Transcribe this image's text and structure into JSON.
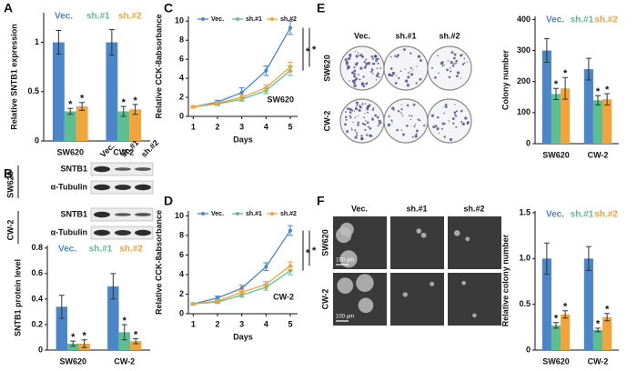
{
  "figure": {
    "panels": [
      "A",
      "B",
      "C",
      "D",
      "E",
      "F"
    ],
    "blot": {
      "columns": [
        "Vec.",
        "sh.#1",
        "sh.#2"
      ],
      "cell_lines": [
        "SW620",
        "CW-2"
      ],
      "proteins": [
        "SNTB1",
        "α-Tubulin"
      ]
    },
    "colony": {
      "columns": [
        "Vec.",
        "sh.#1",
        "sh.#2"
      ],
      "rows": [
        "SW620",
        "CW-2"
      ]
    },
    "sphere": {
      "columns": [
        "Vec.",
        "sh.#1",
        "sh.#2"
      ],
      "rows": [
        "SW620",
        "CW-2"
      ],
      "scale_bar": "100 μm"
    }
  },
  "chart_data": [
    {
      "type": "bar",
      "ylabel": "Relative SNTB1 expression",
      "categories": [
        "SW620",
        "CW-2"
      ],
      "ylim": [
        0,
        1.3
      ],
      "yticks": [
        0,
        0.5,
        1
      ],
      "legend": "top",
      "series": [
        {
          "name": "Vec.",
          "color": "#4a86c8",
          "values": [
            1.0,
            1.0
          ],
          "errors": [
            0.12,
            0.13
          ]
        },
        {
          "name": "sh.#1",
          "color": "#5dbf8f",
          "values": [
            0.3,
            0.3
          ],
          "errors": [
            0.03,
            0.05
          ]
        },
        {
          "name": "sh.#2",
          "color": "#f2a33a",
          "values": [
            0.35,
            0.32
          ],
          "errors": [
            0.04,
            0.05
          ]
        }
      ],
      "annotations": [
        {
          "text": "*",
          "series": 1,
          "category": 0
        },
        {
          "text": "*",
          "series": 2,
          "category": 0
        },
        {
          "text": "*",
          "series": 1,
          "category": 1
        },
        {
          "text": "*",
          "series": 2,
          "category": 1
        }
      ]
    },
    {
      "type": "bar",
      "ylabel": "SNTB1 protein level",
      "categories": [
        "SW620",
        "CW-2"
      ],
      "ylim": [
        0,
        0.82
      ],
      "yticks": [
        0,
        0.2,
        0.4,
        0.6,
        0.8
      ],
      "legend": "top",
      "series": [
        {
          "name": "Vec.",
          "color": "#4a86c8",
          "values": [
            0.34,
            0.5
          ],
          "errors": [
            0.09,
            0.1
          ]
        },
        {
          "name": "sh.#1",
          "color": "#5dbf8f",
          "values": [
            0.05,
            0.14
          ],
          "errors": [
            0.02,
            0.06
          ]
        },
        {
          "name": "sh.#2",
          "color": "#f2a33a",
          "values": [
            0.05,
            0.07
          ],
          "errors": [
            0.03,
            0.02
          ]
        }
      ],
      "annotations": [
        {
          "text": "*",
          "series": 1,
          "category": 0
        },
        {
          "text": "*",
          "series": 2,
          "category": 0
        },
        {
          "text": "*",
          "series": 1,
          "category": 1
        },
        {
          "text": "*",
          "series": 2,
          "category": 1
        }
      ]
    },
    {
      "type": "line",
      "ylabel": "Relative CCK-8absorbance",
      "xlabel": "Days",
      "label": "SW620",
      "x": [
        1,
        2,
        3,
        4,
        5
      ],
      "xlim": [
        0.8,
        5.3
      ],
      "xticks": [
        1,
        2,
        3,
        4,
        5
      ],
      "ylim": [
        0,
        10.5
      ],
      "yticks": [
        0,
        2,
        4,
        6,
        8,
        10
      ],
      "legend": "top",
      "series": [
        {
          "name": "Vec.",
          "color": "#4a86c8",
          "values": [
            1,
            1.5,
            2.5,
            4.8,
            9.3
          ],
          "errors": [
            0.1,
            0.2,
            0.5,
            0.5,
            0.7
          ]
        },
        {
          "name": "sh.#1",
          "color": "#5dbf8f",
          "values": [
            1,
            1.3,
            1.8,
            2.7,
            4.8
          ],
          "errors": [
            0.1,
            0.15,
            0.2,
            0.3,
            0.5
          ]
        },
        {
          "name": "sh.#2",
          "color": "#f2a33a",
          "values": [
            1,
            1.4,
            2.0,
            3.0,
            5.2
          ],
          "errors": [
            0.1,
            0.15,
            0.25,
            0.3,
            0.5
          ]
        }
      ],
      "annotations": [
        {
          "text": "*",
          "series": 1
        },
        {
          "text": "*",
          "series": 2
        }
      ]
    },
    {
      "type": "line",
      "ylabel": "Relative CCK-8absorbance",
      "xlabel": "Days",
      "label": "CW-2",
      "x": [
        1,
        2,
        3,
        4,
        5
      ],
      "xlim": [
        0.8,
        5.3
      ],
      "xticks": [
        1,
        2,
        3,
        4,
        5
      ],
      "ylim": [
        0,
        10.5
      ],
      "yticks": [
        0,
        2,
        4,
        6,
        8,
        10
      ],
      "legend": "top",
      "series": [
        {
          "name": "Vec.",
          "color": "#4a86c8",
          "values": [
            1,
            1.6,
            2.6,
            4.8,
            8.5
          ],
          "errors": [
            0.1,
            0.2,
            0.3,
            0.4,
            0.5
          ]
        },
        {
          "name": "sh.#1",
          "color": "#5dbf8f",
          "values": [
            1,
            1.2,
            1.9,
            2.7,
            4.4
          ],
          "errors": [
            0.1,
            0.15,
            0.2,
            0.3,
            0.4
          ]
        },
        {
          "name": "sh.#2",
          "color": "#f2a33a",
          "values": [
            1,
            1.3,
            2.2,
            3.0,
            4.9
          ],
          "errors": [
            0.1,
            0.15,
            0.25,
            0.3,
            0.4
          ]
        }
      ],
      "annotations": [
        {
          "text": "*",
          "series": 1
        },
        {
          "text": "*",
          "series": 2
        }
      ]
    },
    {
      "type": "bar",
      "ylabel": "Colony number",
      "categories": [
        "SW620",
        "CW-2"
      ],
      "ylim": [
        0,
        410
      ],
      "yticks": [
        0,
        100,
        200,
        300,
        400
      ],
      "legend": "top",
      "series": [
        {
          "name": "Vec.",
          "color": "#4a86c8",
          "values": [
            300,
            240
          ],
          "errors": [
            38,
            35
          ]
        },
        {
          "name": "sh.#1",
          "color": "#5dbf8f",
          "values": [
            160,
            140
          ],
          "errors": [
            18,
            15
          ]
        },
        {
          "name": "sh.#2",
          "color": "#f2a33a",
          "values": [
            178,
            143
          ],
          "errors": [
            35,
            18
          ]
        }
      ],
      "annotations": [
        {
          "text": "*",
          "series": 1,
          "category": 0
        },
        {
          "text": "*",
          "series": 2,
          "category": 0
        },
        {
          "text": "*",
          "series": 1,
          "category": 1
        },
        {
          "text": "*",
          "series": 2,
          "category": 1
        }
      ]
    },
    {
      "type": "bar",
      "ylabel": "Relative colony number",
      "categories": [
        "SW620",
        "CW-2"
      ],
      "ylim": [
        0,
        1.52
      ],
      "yticks": [
        0,
        0.5,
        {
          "value": 1,
          "label": "1.0"
        },
        1.5
      ],
      "legend": "top",
      "series": [
        {
          "name": "Vec.",
          "color": "#4a86c8",
          "values": [
            1.0,
            1.0
          ],
          "errors": [
            0.17,
            0.13
          ]
        },
        {
          "name": "sh.#1",
          "color": "#5dbf8f",
          "values": [
            0.27,
            0.22
          ],
          "errors": [
            0.03,
            0.02
          ]
        },
        {
          "name": "sh.#2",
          "color": "#f2a33a",
          "values": [
            0.39,
            0.36
          ],
          "errors": [
            0.04,
            0.04
          ]
        }
      ],
      "annotations": [
        {
          "text": "*",
          "series": 1,
          "category": 0
        },
        {
          "text": "*",
          "series": 2,
          "category": 0
        },
        {
          "text": "*",
          "series": 1,
          "category": 1
        },
        {
          "text": "*",
          "series": 2,
          "category": 1
        }
      ]
    }
  ]
}
